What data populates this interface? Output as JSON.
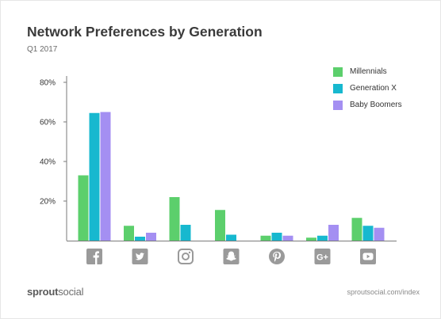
{
  "header": {
    "title": "Network Preferences by Generation",
    "subtitle": "Q1 2017"
  },
  "footer": {
    "brand_bold": "sprout",
    "brand_light": "social",
    "source": "sproutsocial.com/index"
  },
  "colors": {
    "millennials": "#5ccf6c",
    "generation_x": "#17b8cf",
    "baby_boomers": "#a48ff2",
    "axis": "#7a7a7a",
    "icon": "#9a9a9a"
  },
  "chart_data": {
    "type": "bar",
    "categories": [
      "facebook-icon",
      "twitter-icon",
      "instagram-icon",
      "snapchat-icon",
      "pinterest-icon",
      "google-plus-icon",
      "youtube-icon"
    ],
    "series": [
      {
        "name": "Millennials",
        "color": "#5ccf6c",
        "values": [
          33,
          7.5,
          22,
          15.5,
          2.5,
          1.5,
          11.5
        ]
      },
      {
        "name": "Generation X",
        "color": "#17b8cf",
        "values": [
          64.5,
          2,
          8,
          3,
          4,
          2.5,
          7.5
        ]
      },
      {
        "name": "Baby Boomers",
        "color": "#a48ff2",
        "values": [
          65,
          4,
          0,
          0,
          2.5,
          8,
          6.5
        ]
      }
    ],
    "yticks": [
      "20%",
      "40%",
      "60%",
      "80%"
    ],
    "ytick_values": [
      20,
      40,
      60,
      80
    ],
    "ylim": [
      0,
      80
    ],
    "grid": false,
    "legend_position": "top-right",
    "xlabel": "",
    "ylabel": ""
  }
}
